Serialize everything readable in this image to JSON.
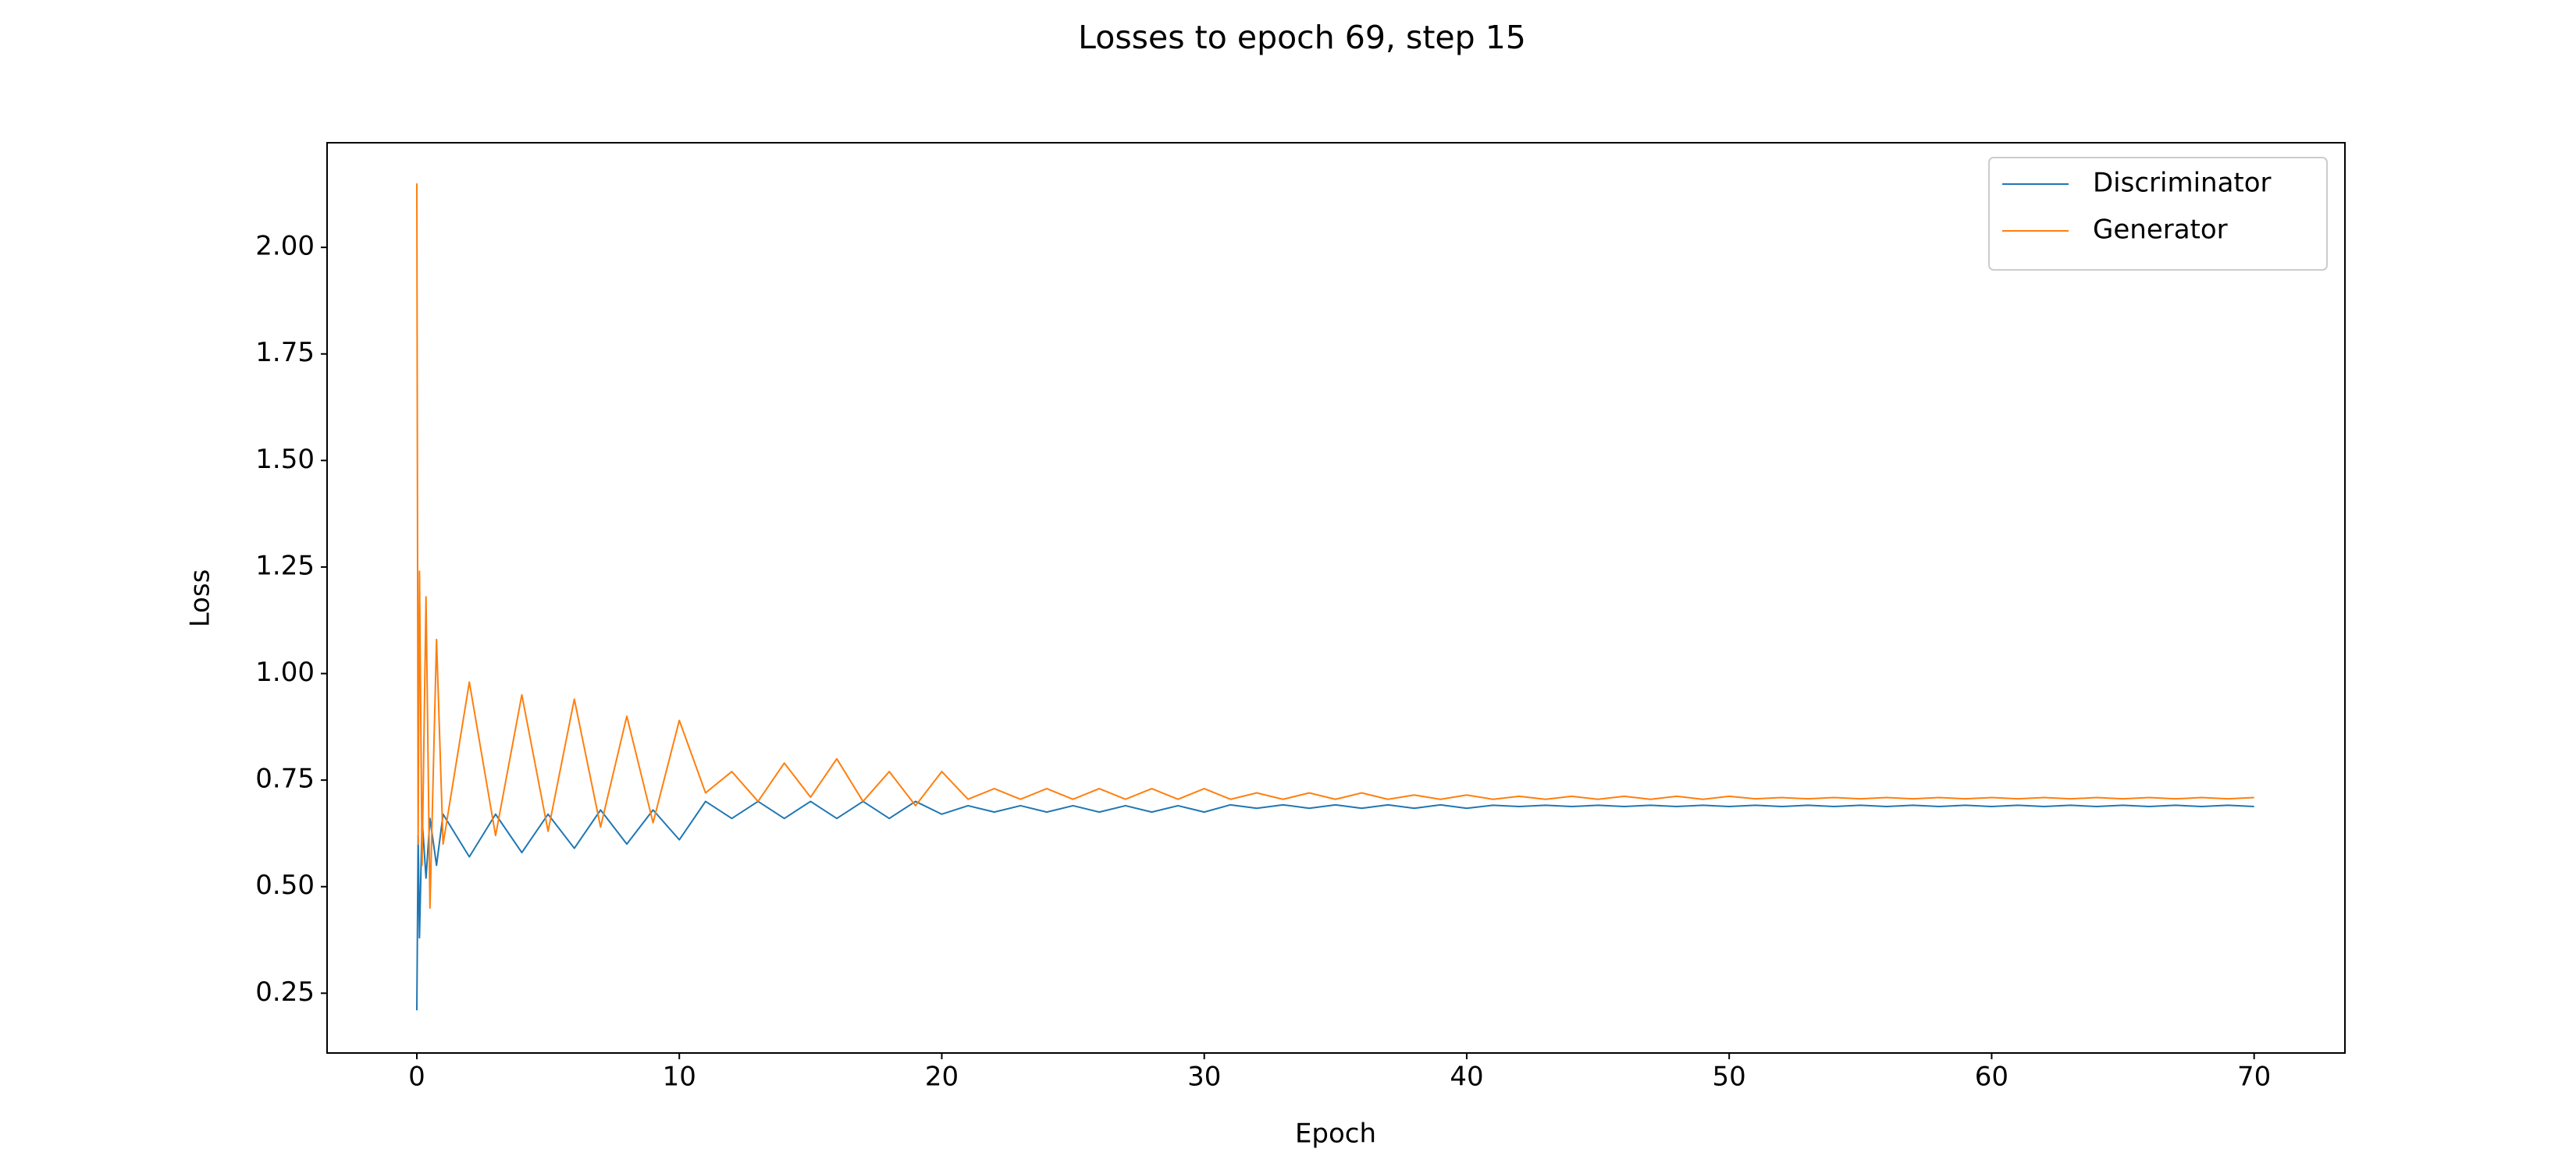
{
  "chart_data": {
    "type": "line",
    "title": "Losses to epoch 69, step 15",
    "x_label": "Epoch",
    "y_label": "Loss",
    "x": [
      0,
      0.05,
      0.1,
      0.2,
      0.35,
      0.5,
      0.75,
      1,
      2,
      3,
      4,
      5,
      6,
      7,
      8,
      9,
      10,
      11,
      12,
      13,
      14,
      15,
      16,
      17,
      18,
      19,
      20,
      21,
      22,
      23,
      24,
      25,
      26,
      27,
      28,
      29,
      30,
      31,
      32,
      33,
      34,
      35,
      36,
      37,
      38,
      39,
      40,
      41,
      42,
      43,
      44,
      45,
      46,
      47,
      48,
      49,
      50,
      51,
      52,
      53,
      54,
      55,
      56,
      57,
      58,
      59,
      60,
      61,
      62,
      63,
      64,
      65,
      66,
      67,
      68,
      69,
      70
    ],
    "series": [
      {
        "name": "Discriminator",
        "color": "#1f77b4",
        "values": [
          0.21,
          0.62,
          0.38,
          0.66,
          0.52,
          0.66,
          0.55,
          0.67,
          0.57,
          0.67,
          0.58,
          0.67,
          0.59,
          0.68,
          0.6,
          0.68,
          0.61,
          0.7,
          0.66,
          0.7,
          0.66,
          0.7,
          0.66,
          0.7,
          0.66,
          0.7,
          0.67,
          0.69,
          0.675,
          0.69,
          0.675,
          0.69,
          0.675,
          0.69,
          0.675,
          0.69,
          0.675,
          0.692,
          0.684,
          0.692,
          0.684,
          0.692,
          0.684,
          0.692,
          0.684,
          0.692,
          0.684,
          0.691,
          0.688,
          0.691,
          0.688,
          0.691,
          0.688,
          0.691,
          0.688,
          0.691,
          0.688,
          0.691,
          0.688,
          0.691,
          0.688,
          0.691,
          0.688,
          0.691,
          0.688,
          0.691,
          0.688,
          0.691,
          0.688,
          0.691,
          0.688,
          0.691,
          0.688,
          0.691,
          0.688,
          0.691,
          0.688
        ]
      },
      {
        "name": "Generator",
        "color": "#ff7f0e",
        "values": [
          2.15,
          0.6,
          1.24,
          0.55,
          1.18,
          0.45,
          1.08,
          0.6,
          0.98,
          0.62,
          0.95,
          0.63,
          0.94,
          0.64,
          0.9,
          0.65,
          0.89,
          0.72,
          0.77,
          0.7,
          0.79,
          0.71,
          0.8,
          0.7,
          0.77,
          0.69,
          0.77,
          0.705,
          0.73,
          0.705,
          0.73,
          0.705,
          0.73,
          0.705,
          0.73,
          0.705,
          0.73,
          0.705,
          0.72,
          0.705,
          0.72,
          0.705,
          0.72,
          0.705,
          0.715,
          0.705,
          0.715,
          0.705,
          0.712,
          0.705,
          0.712,
          0.705,
          0.712,
          0.705,
          0.712,
          0.705,
          0.712,
          0.706,
          0.709,
          0.706,
          0.709,
          0.706,
          0.709,
          0.706,
          0.709,
          0.706,
          0.709,
          0.706,
          0.709,
          0.706,
          0.709,
          0.706,
          0.709,
          0.706,
          0.709,
          0.706,
          0.709
        ]
      }
    ],
    "xlim": [
      -3.42,
      73.46
    ],
    "xticks": [
      0,
      10,
      20,
      30,
      40,
      50,
      60,
      70
    ],
    "ylim": [
      0.1097,
      2.2455
    ],
    "yticks": [
      0.25,
      {
        "value": 0.5,
        "label": "0.50"
      },
      0.75,
      {
        "value": 1.0,
        "label": "1.00"
      },
      1.25,
      {
        "value": 1.5,
        "label": "1.50"
      },
      1.75,
      {
        "value": 2.0,
        "label": "2.00"
      }
    ],
    "grid": false,
    "legend": "upper right"
  }
}
